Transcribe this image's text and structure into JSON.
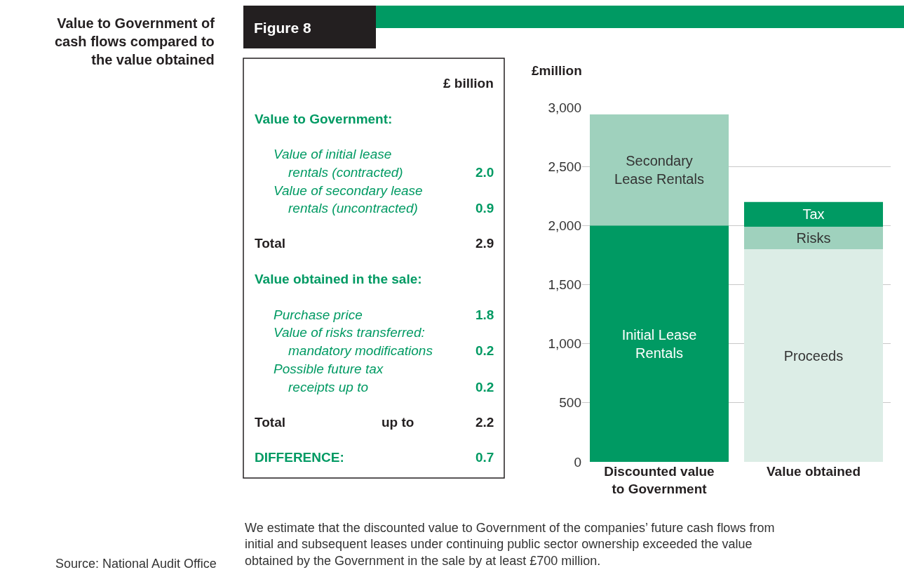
{
  "chart_data": [
    {
      "type": "other",
      "title": "Figure 8",
      "subtitle": "Value to Government of cash flows compared to the value obtained",
      "annotations": [
        "£ billion",
        "Value to Government:",
        "Value of initial lease",
        "rentals (contracted)",
        "2.0",
        "Value of secondary lease",
        "rentals (uncontracted)",
        "0.9",
        "Total",
        "2.9",
        "Value obtained in the sale:",
        "Purchase price",
        "1.8",
        "Value of risks transferred:",
        "mandatory modifications",
        "0.2",
        "Possible future tax",
        "receipts up to",
        "0.2",
        "Total",
        "up to",
        "2.2",
        "DIFFERENCE:",
        "0.7"
      ]
    },
    {
      "type": "bar",
      "stacked": true,
      "ylabel": "£million",
      "categories": [
        "Discounted value to Government",
        "Value obtained"
      ],
      "series": [
        {
          "name": "Initial Lease Rentals",
          "color": "#009a63",
          "values": [
            2000,
            null
          ]
        },
        {
          "name": "Secondary Lease Rentals",
          "color": "#9fd1bd",
          "values": [
            940,
            null
          ]
        },
        {
          "name": "Proceeds",
          "color": "#dcede6",
          "values": [
            null,
            1800
          ]
        },
        {
          "name": "Risks",
          "color": "#9fd1bd",
          "values": [
            null,
            190
          ]
        },
        {
          "name": "Tax",
          "color": "#009a63",
          "values": [
            null,
            210
          ]
        }
      ],
      "ylim": [
        0,
        3000
      ],
      "yticks": [
        0,
        500,
        {
          "value": 1000,
          "label": "1,000"
        },
        {
          "value": 1500,
          "label": "1,500"
        },
        {
          "value": 2000,
          "label": "2,000"
        },
        {
          "value": 2500,
          "label": "2,500"
        },
        {
          "value": 3000,
          "label": "3,000"
        }
      ],
      "grid": "y",
      "legend": false,
      "annotations": [
        "Source: National Audit Office",
        "We estimate that the discounted value to Government of the companies’ future cash flows from initial and subsequent leases under continuing public sector ownership exceeded the value obtained by the Government in the sale by at least £700 million."
      ]
    }
  ]
}
